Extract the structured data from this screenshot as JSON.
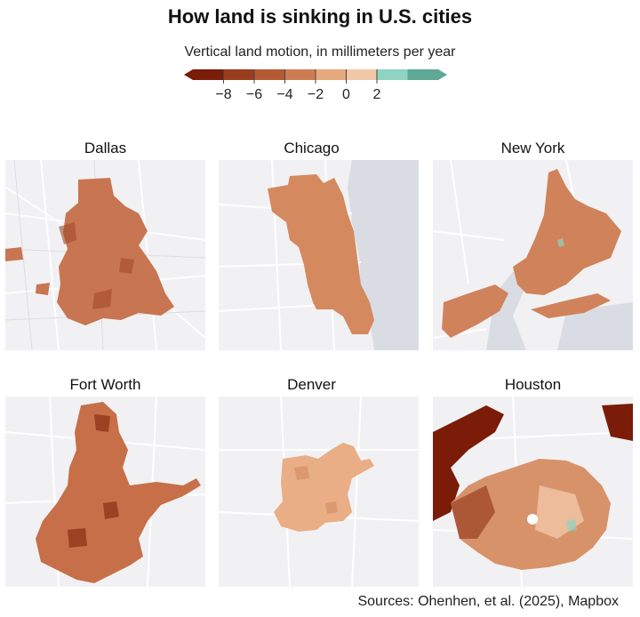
{
  "title": "How land is sinking in U.S. cities",
  "legend": {
    "label": "Vertical land motion, in millimeters per year",
    "ticks": [
      "−8",
      "−6",
      "−4",
      "−2",
      "0",
      "2"
    ],
    "colors": [
      "#7a1c08",
      "#9a3d1e",
      "#b45a35",
      "#cd7c52",
      "#e8a87d",
      "#f1c7a8",
      "#8fd3c2",
      "#5ea896"
    ]
  },
  "cities": [
    {
      "name": "Dallas",
      "color": "#c87551",
      "accent": "#a14a2a"
    },
    {
      "name": "Chicago",
      "color": "#d4895f",
      "accent": "#c87551"
    },
    {
      "name": "New York",
      "color": "#d0835b",
      "accent": "#b86445"
    },
    {
      "name": "Fort Worth",
      "color": "#c66f49",
      "accent": "#8a2d12"
    },
    {
      "name": "Denver",
      "color": "#e9ae85",
      "accent": "#d4895f"
    },
    {
      "name": "Houston",
      "color": "#d7926a",
      "accent": "#7a1c08"
    }
  ],
  "sources": "Sources: Ohenhen, et al. (2025), Mapbox"
}
